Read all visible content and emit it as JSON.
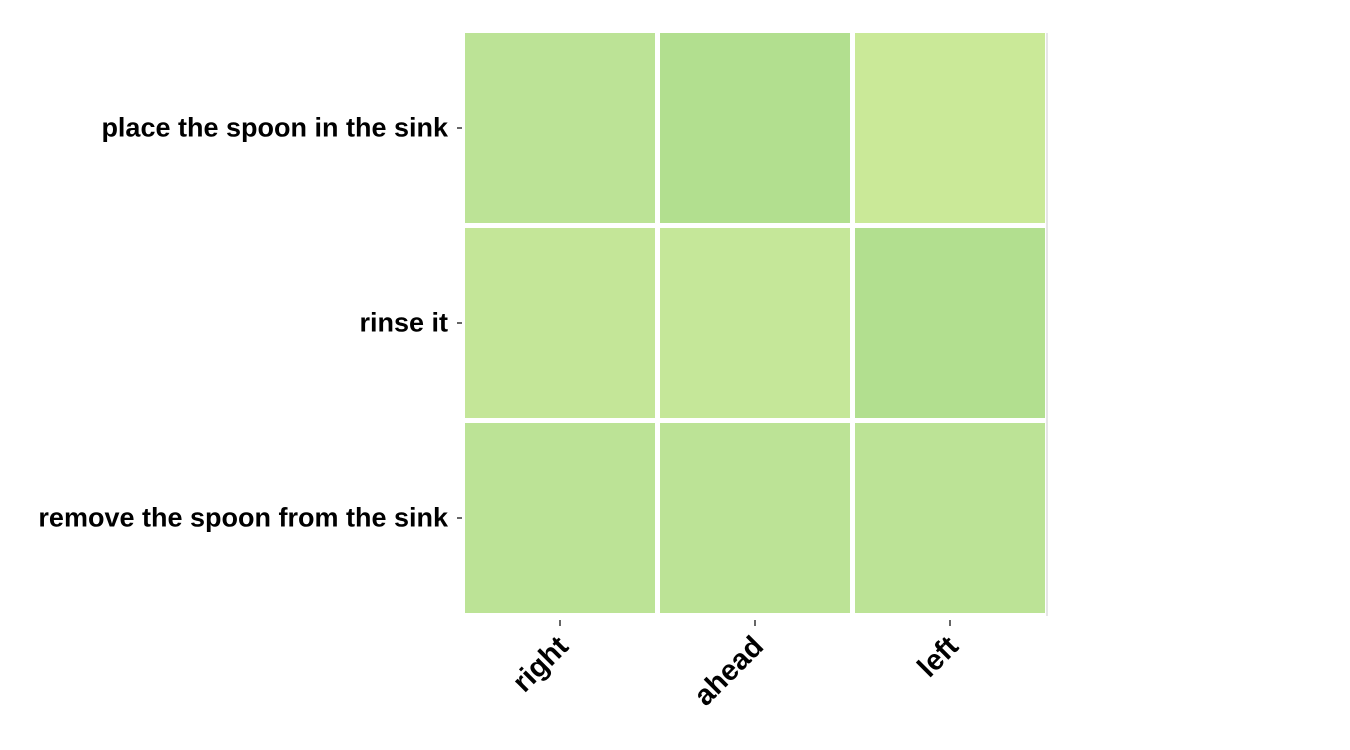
{
  "chart_data": {
    "type": "heatmap",
    "title": "",
    "xlabel": "",
    "ylabel": "",
    "x_categories": [
      "right",
      "ahead",
      "left"
    ],
    "y_categories": [
      "place the spoon in the sink",
      "rinse it",
      "remove the spoon from the sink"
    ],
    "cell_colors": [
      [
        "#bce396",
        "#b2df8f",
        "#cae998"
      ],
      [
        "#c4e698",
        "#c5e799",
        "#b2df8f"
      ],
      [
        "#bce396",
        "#bce396",
        "#bce396"
      ]
    ],
    "values": [
      [
        0.36,
        0.4,
        0.24
      ],
      [
        0.33,
        0.32,
        0.35
      ],
      [
        0.33,
        0.33,
        0.33
      ]
    ],
    "grid": false,
    "legend": "none"
  }
}
